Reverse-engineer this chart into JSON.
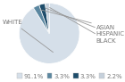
{
  "labels": [
    "WHITE",
    "ASIAN",
    "HISPANIC",
    "BLACK"
  ],
  "values": [
    91.1,
    3.3,
    3.3,
    2.2
  ],
  "colors": [
    "#d5dfe9",
    "#5b87a0",
    "#1e4d6b",
    "#c5d0db"
  ],
  "legend_colors": [
    "#d5dfe9",
    "#5b87a0",
    "#1e4d6b",
    "#c5d0db"
  ],
  "legend_labels": [
    "91.1%",
    "3.3%",
    "3.3%",
    "2.2%"
  ],
  "label_fontsize": 5.0,
  "legend_fontsize": 5.0,
  "startangle": 90
}
